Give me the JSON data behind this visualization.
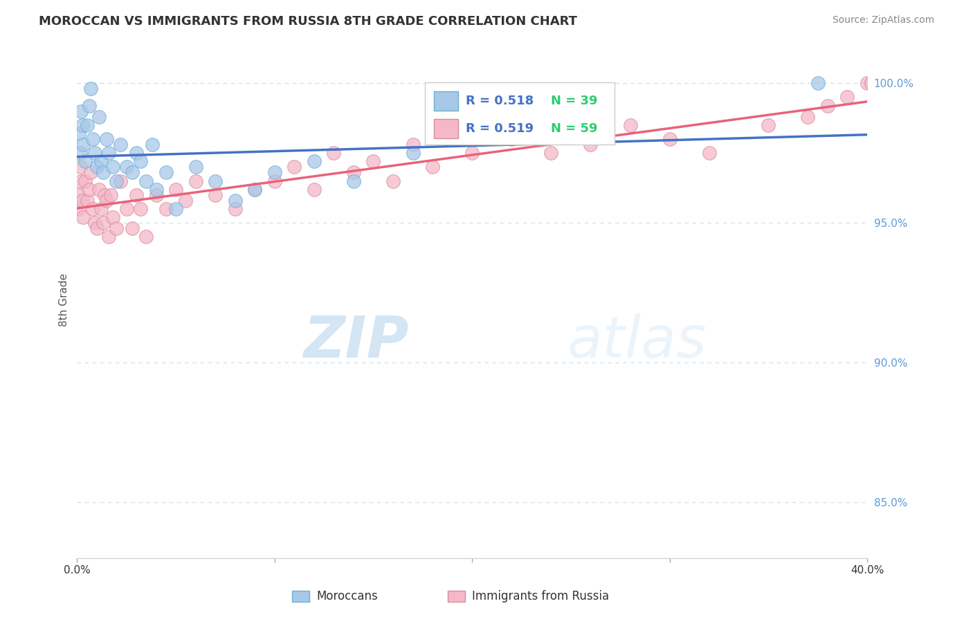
{
  "title": "MOROCCAN VS IMMIGRANTS FROM RUSSIA 8TH GRADE CORRELATION CHART",
  "source": "Source: ZipAtlas.com",
  "ylabel": "8th Grade",
  "xlim": [
    0.0,
    40.0
  ],
  "ylim": [
    83.0,
    101.5
  ],
  "yticks": [
    85.0,
    90.0,
    95.0,
    100.0
  ],
  "moroccan_color": "#a8c8e8",
  "moroccan_edge_color": "#6baed6",
  "russia_color": "#f4b8c8",
  "russia_edge_color": "#d98aa0",
  "moroccan_line_color": "#4472c4",
  "russia_line_color": "#e8637a",
  "legend_R_moroccan": "R = 0.518",
  "legend_N_moroccan": "N = 39",
  "legend_R_russia": "R = 0.519",
  "legend_N_russia": "N = 59",
  "moroccan_scatter_x": [
    0.1,
    0.15,
    0.2,
    0.25,
    0.3,
    0.4,
    0.5,
    0.6,
    0.7,
    0.8,
    0.9,
    1.0,
    1.1,
    1.2,
    1.3,
    1.5,
    1.6,
    1.8,
    2.0,
    2.2,
    2.5,
    2.8,
    3.0,
    3.2,
    3.5,
    3.8,
    4.0,
    4.5,
    5.0,
    6.0,
    7.0,
    8.0,
    9.0,
    10.0,
    12.0,
    14.0,
    17.0,
    22.0,
    37.5
  ],
  "moroccan_scatter_y": [
    98.2,
    97.5,
    99.0,
    98.5,
    97.8,
    97.2,
    98.5,
    99.2,
    99.8,
    98.0,
    97.5,
    97.0,
    98.8,
    97.2,
    96.8,
    98.0,
    97.5,
    97.0,
    96.5,
    97.8,
    97.0,
    96.8,
    97.5,
    97.2,
    96.5,
    97.8,
    96.2,
    96.8,
    95.5,
    97.0,
    96.5,
    95.8,
    96.2,
    96.8,
    97.2,
    96.5,
    97.5,
    98.5,
    100.0
  ],
  "russia_scatter_x": [
    0.05,
    0.1,
    0.15,
    0.2,
    0.25,
    0.3,
    0.4,
    0.5,
    0.6,
    0.7,
    0.8,
    0.9,
    1.0,
    1.1,
    1.2,
    1.3,
    1.4,
    1.5,
    1.6,
    1.7,
    1.8,
    2.0,
    2.2,
    2.5,
    2.8,
    3.0,
    3.2,
    3.5,
    4.0,
    4.5,
    5.0,
    5.5,
    6.0,
    7.0,
    8.0,
    9.0,
    10.0,
    11.0,
    12.0,
    13.0,
    14.0,
    15.0,
    16.0,
    17.0,
    18.0,
    20.0,
    22.0,
    24.0,
    25.0,
    26.0,
    28.0,
    30.0,
    32.0,
    35.0,
    37.0,
    38.0,
    39.0,
    40.0,
    40.2
  ],
  "russia_scatter_y": [
    96.0,
    95.5,
    97.0,
    96.5,
    95.8,
    95.2,
    96.5,
    95.8,
    96.2,
    96.8,
    95.5,
    95.0,
    94.8,
    96.2,
    95.5,
    95.0,
    96.0,
    95.8,
    94.5,
    96.0,
    95.2,
    94.8,
    96.5,
    95.5,
    94.8,
    96.0,
    95.5,
    94.5,
    96.0,
    95.5,
    96.2,
    95.8,
    96.5,
    96.0,
    95.5,
    96.2,
    96.5,
    97.0,
    96.2,
    97.5,
    96.8,
    97.2,
    96.5,
    97.8,
    97.0,
    97.5,
    98.0,
    97.5,
    98.2,
    97.8,
    98.5,
    98.0,
    97.5,
    98.5,
    98.8,
    99.2,
    99.5,
    100.0,
    100.0
  ],
  "watermark_zip": "ZIP",
  "watermark_atlas": "atlas",
  "background_color": "#ffffff",
  "grid_color": "#c8dff0",
  "ytick_color": "#5b9bd5",
  "top_dotted_y": 100.0
}
